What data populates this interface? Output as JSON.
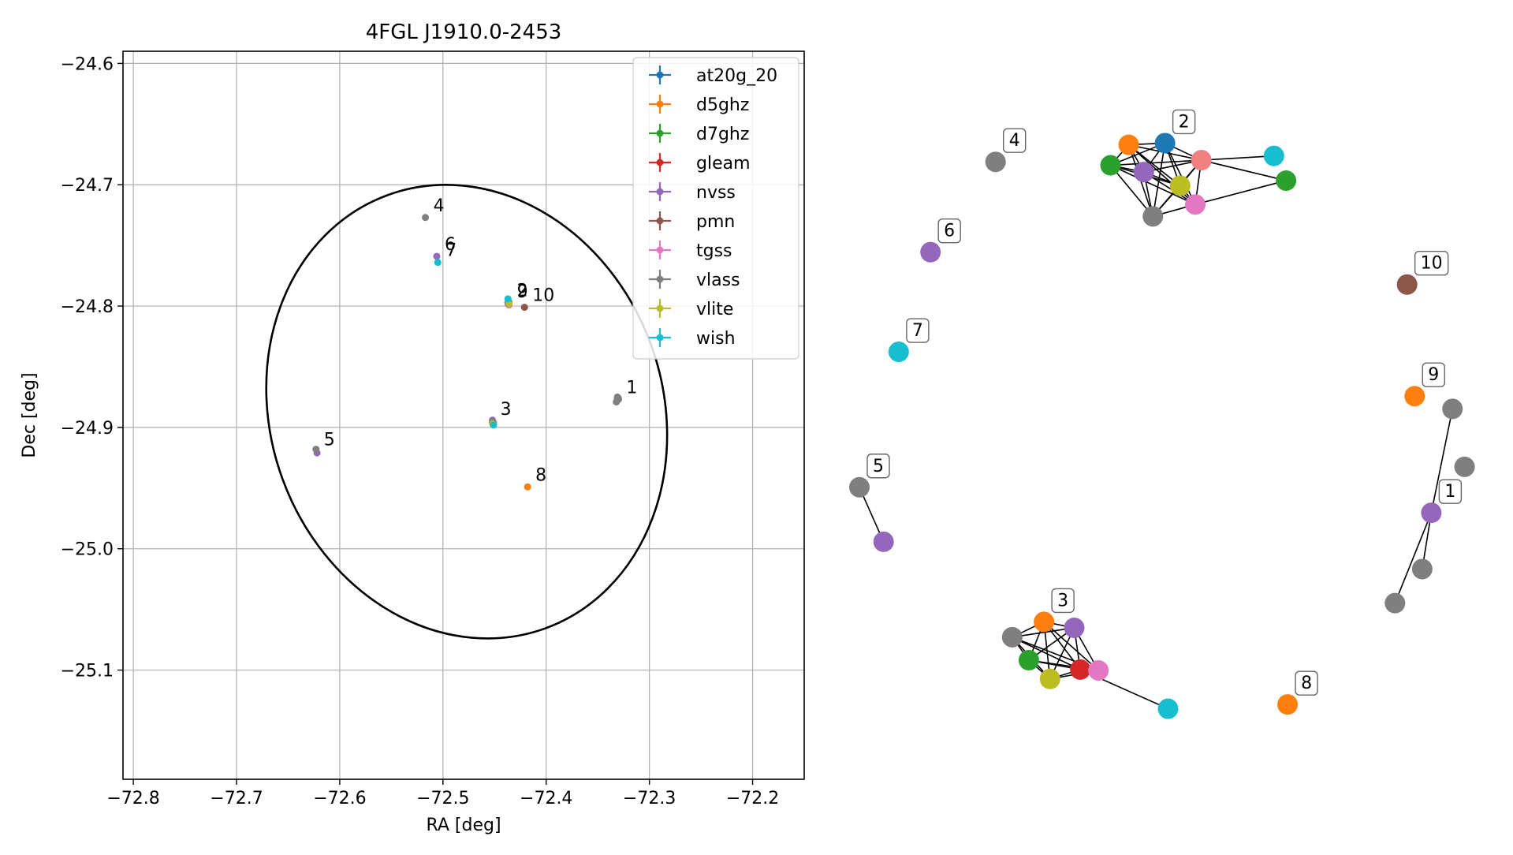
{
  "chart_data": [
    {
      "type": "scatter",
      "title": "4FGL J1910.0-2453",
      "xlabel": "RA [deg]",
      "ylabel": "Dec [deg]",
      "xlim": [
        -72.81,
        -72.15
      ],
      "ylim": [
        -25.19,
        -24.59
      ],
      "xticks": [
        -72.8,
        -72.7,
        -72.6,
        -72.5,
        -72.4,
        -72.3,
        -72.2
      ],
      "xtick_labels": [
        "−72.8",
        "−72.7",
        "−72.6",
        "−72.5",
        "−72.4",
        "−72.3",
        "−72.2"
      ],
      "yticks": [
        -24.6,
        -24.7,
        -24.8,
        -24.9,
        -25.0,
        -25.1
      ],
      "ytick_labels": [
        "−24.6",
        "−24.7",
        "−24.8",
        "−24.9",
        "−25.0",
        "−25.1"
      ],
      "grid": true,
      "legend_position": "top-right",
      "ellipse": {
        "center": [
          -72.477,
          -24.887
        ],
        "ra_semi_axis": 0.19,
        "dec_semi_axis": 0.19,
        "angle_deg": 20
      },
      "series": [
        {
          "name": "at20g_20",
          "color": "#1f77b4",
          "points": [
            [
              -72.436,
              -24.797
            ]
          ]
        },
        {
          "name": "d5ghz",
          "color": "#ff7f0e",
          "points": [
            [
              -72.436,
              -24.798
            ],
            [
              -72.452,
              -24.895
            ],
            [
              -72.418,
              -24.949
            ]
          ]
        },
        {
          "name": "d7ghz",
          "color": "#2ca02c",
          "points": [
            [
              -72.437,
              -24.797
            ],
            [
              -72.452,
              -24.896
            ]
          ]
        },
        {
          "name": "gleam",
          "color": "#d62728",
          "points": [
            [
              -72.436,
              -24.799
            ],
            [
              -72.452,
              -24.896
            ]
          ]
        },
        {
          "name": "nvss",
          "color": "#9467bd",
          "points": [
            [
              -72.437,
              -24.797
            ],
            [
              -72.452,
              -24.894
            ],
            [
              -72.622,
              -24.921
            ],
            [
              -72.506,
              -24.759
            ],
            [
              -72.33,
              -24.877
            ]
          ]
        },
        {
          "name": "pmn",
          "color": "#8c564b",
          "points": [
            [
              -72.421,
              -24.801
            ]
          ]
        },
        {
          "name": "tgss",
          "color": "#e377c2",
          "points": [
            [
              -72.436,
              -24.799
            ],
            [
              -72.451,
              -24.896
            ]
          ]
        },
        {
          "name": "vlass",
          "color": "#7f7f7f",
          "points": [
            [
              -72.437,
              -24.798
            ],
            [
              -72.452,
              -24.895
            ],
            [
              -72.517,
              -24.727
            ],
            [
              -72.623,
              -24.918
            ],
            [
              -72.331,
              -24.875
            ],
            [
              -72.33,
              -24.876
            ],
            [
              -72.332,
              -24.879
            ],
            [
              -72.331,
              -24.877
            ]
          ]
        },
        {
          "name": "vlite",
          "color": "#bcbd22",
          "points": [
            [
              -72.436,
              -24.798
            ],
            [
              -72.452,
              -24.897
            ]
          ]
        },
        {
          "name": "wish",
          "color": "#17becf",
          "points": [
            [
              -72.437,
              -24.794
            ],
            [
              -72.451,
              -24.898
            ],
            [
              -72.505,
              -24.764
            ]
          ]
        }
      ],
      "annotations": [
        {
          "text": "1",
          "x": -72.33,
          "y": -24.877
        },
        {
          "text": "2",
          "x": -72.436,
          "y": -24.797
        },
        {
          "text": "3",
          "x": -72.452,
          "y": -24.895
        },
        {
          "text": "4",
          "x": -72.517,
          "y": -24.727
        },
        {
          "text": "5",
          "x": -72.623,
          "y": -24.92
        },
        {
          "text": "6",
          "x": -72.506,
          "y": -24.759
        },
        {
          "text": "7",
          "x": -72.505,
          "y": -24.764
        },
        {
          "text": "8",
          "x": -72.418,
          "y": -24.949
        },
        {
          "text": "9",
          "x": -72.436,
          "y": -24.798
        },
        {
          "text": "10",
          "x": -72.421,
          "y": -24.801
        }
      ]
    },
    {
      "type": "network",
      "color_key": {
        "at20g_20": "#1f77b4",
        "d5ghz": "#ff7f0e",
        "d7ghz": "#2ca02c",
        "gleam": "#d62728",
        "nvss": "#9467bd",
        "pmn": "#8c564b",
        "tgss": "#e377c2",
        "vlass": "#7f7f7f",
        "vlite": "#bcbd22",
        "wish": "#17becf",
        "gleam_light": "#f08080"
      },
      "groups": [
        {
          "label": "1",
          "nodes": [
            [
              "nvss",
              0.946,
              0.602
            ],
            [
              "vlass",
              0.96,
              0.48
            ],
            [
              "vlass",
              0.968,
              0.548
            ],
            [
              "vlass",
              0.94,
              0.668
            ],
            [
              "vlass",
              0.922,
              0.708
            ]
          ],
          "edges": [
            [
              0,
              1
            ],
            [
              0,
              3
            ],
            [
              0,
              4
            ]
          ]
        },
        {
          "label": "2",
          "nodes": [
            [
              "at20g_20",
              0.77,
              0.168
            ],
            [
              "d5ghz",
              0.746,
              0.17
            ],
            [
              "d7ghz",
              0.734,
              0.194
            ],
            [
              "gleam_light",
              0.794,
              0.188
            ],
            [
              "nvss",
              0.756,
              0.202
            ],
            [
              "vlite",
              0.78,
              0.218
            ],
            [
              "vlass",
              0.762,
              0.254
            ],
            [
              "tgss",
              0.79,
              0.24
            ],
            [
              "wish",
              0.842,
              0.183
            ],
            [
              "d7ghz",
              0.85,
              0.212
            ]
          ],
          "edges": [
            [
              0,
              1
            ],
            [
              0,
              2
            ],
            [
              0,
              3
            ],
            [
              0,
              4
            ],
            [
              0,
              5
            ],
            [
              0,
              6
            ],
            [
              0,
              7
            ],
            [
              1,
              2
            ],
            [
              1,
              3
            ],
            [
              1,
              4
            ],
            [
              1,
              5
            ],
            [
              1,
              6
            ],
            [
              1,
              7
            ],
            [
              2,
              3
            ],
            [
              2,
              4
            ],
            [
              2,
              5
            ],
            [
              2,
              6
            ],
            [
              2,
              7
            ],
            [
              3,
              4
            ],
            [
              3,
              5
            ],
            [
              3,
              6
            ],
            [
              3,
              7
            ],
            [
              3,
              8
            ],
            [
              3,
              9
            ],
            [
              4,
              5
            ],
            [
              4,
              6
            ],
            [
              4,
              7
            ],
            [
              5,
              6
            ],
            [
              5,
              7
            ],
            [
              6,
              7
            ],
            [
              7,
              9
            ]
          ]
        },
        {
          "label": "3",
          "nodes": [
            [
              "d5ghz",
              0.69,
              0.73
            ],
            [
              "nvss",
              0.71,
              0.737
            ],
            [
              "vlass",
              0.669,
              0.748
            ],
            [
              "d7ghz",
              0.68,
              0.775
            ],
            [
              "vlite",
              0.694,
              0.797
            ],
            [
              "gleam",
              0.714,
              0.786
            ],
            [
              "tgss",
              0.726,
              0.787
            ],
            [
              "wish",
              0.772,
              0.832
            ]
          ],
          "edges": [
            [
              0,
              1
            ],
            [
              0,
              2
            ],
            [
              0,
              3
            ],
            [
              0,
              4
            ],
            [
              0,
              5
            ],
            [
              0,
              6
            ],
            [
              1,
              2
            ],
            [
              1,
              3
            ],
            [
              1,
              4
            ],
            [
              1,
              5
            ],
            [
              1,
              6
            ],
            [
              2,
              3
            ],
            [
              2,
              4
            ],
            [
              2,
              5
            ],
            [
              2,
              6
            ],
            [
              3,
              4
            ],
            [
              3,
              5
            ],
            [
              3,
              6
            ],
            [
              4,
              5
            ],
            [
              4,
              6
            ],
            [
              5,
              6
            ],
            [
              5,
              7
            ]
          ]
        },
        {
          "label": "4",
          "nodes": [
            [
              "vlass",
              0.658,
              0.19
            ]
          ],
          "edges": []
        },
        {
          "label": "5",
          "nodes": [
            [
              "vlass",
              0.568,
              0.572
            ],
            [
              "nvss",
              0.584,
              0.636
            ]
          ],
          "edges": [
            [
              0,
              1
            ]
          ]
        },
        {
          "label": "6",
          "nodes": [
            [
              "nvss",
              0.615,
              0.296
            ]
          ],
          "edges": []
        },
        {
          "label": "7",
          "nodes": [
            [
              "wish",
              0.594,
              0.413
            ]
          ],
          "edges": []
        },
        {
          "label": "8",
          "nodes": [
            [
              "d5ghz",
              0.851,
              0.827
            ]
          ],
          "edges": []
        },
        {
          "label": "9",
          "nodes": [
            [
              "d5ghz",
              0.935,
              0.465
            ]
          ],
          "edges": []
        },
        {
          "label": "10",
          "nodes": [
            [
              "pmn",
              0.93,
              0.334
            ]
          ],
          "edges": []
        }
      ]
    }
  ]
}
